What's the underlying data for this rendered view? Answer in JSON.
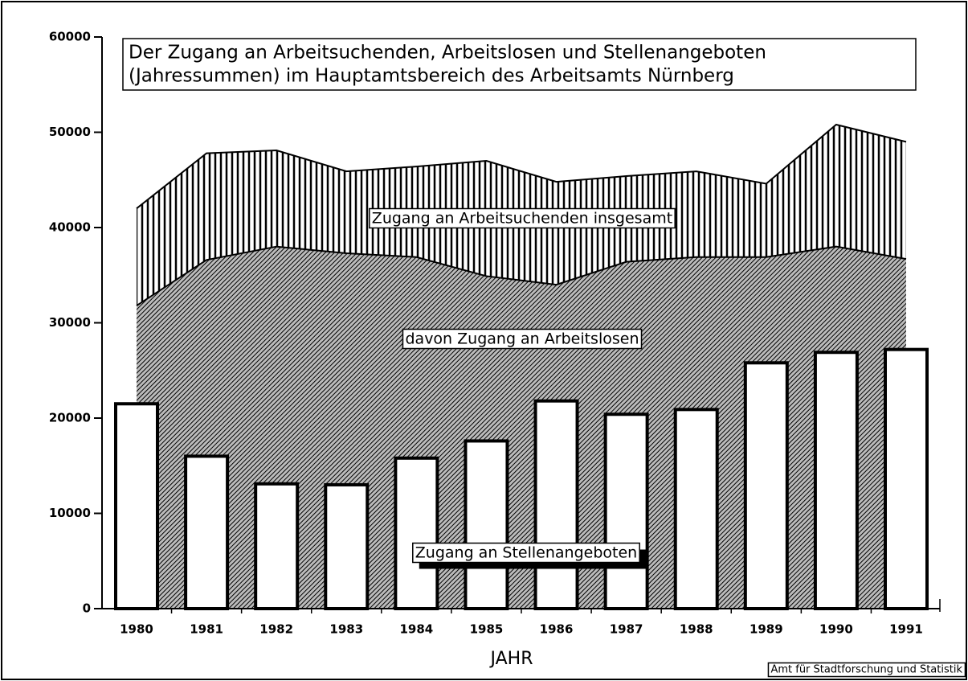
{
  "chart_data": {
    "type": "combo",
    "title": [
      "Der Zugang an Arbeitsuchenden, Arbeitslosen und Stellenangeboten",
      "(Jahressummen) im Hauptamtsbereich des Arbeitsamts Nürnberg"
    ],
    "x_label": "JAHR",
    "source": "Amt für Stadtforschung und Statistik",
    "categories": [
      "1980",
      "1981",
      "1982",
      "1983",
      "1984",
      "1985",
      "1986",
      "1987",
      "1988",
      "1989",
      "1990",
      "1991"
    ],
    "series": [
      {
        "name": "Zugang an Arbeitsuchenden insgesamt",
        "type": "area",
        "color": "#000000",
        "values": [
          42000,
          47800,
          48100,
          45900,
          46400,
          47000,
          44800,
          45400,
          45900,
          44600,
          50800,
          49000
        ]
      },
      {
        "name": "davon Zugang an Arbeitslosen",
        "type": "area",
        "color": "#000000",
        "values": [
          31800,
          36600,
          38000,
          37300,
          36900,
          34900,
          34000,
          36400,
          36900,
          36900,
          38000,
          36700
        ]
      },
      {
        "name": "Zugang an Stellenangeboten",
        "type": "bar",
        "color": "#ffffff",
        "values": [
          21500,
          16000,
          13100,
          13000,
          15800,
          17600,
          21800,
          20400,
          20900,
          25800,
          26900,
          27200
        ]
      }
    ],
    "ylim": [
      0,
      60000
    ],
    "yticks": [
      0,
      10000,
      20000,
      30000,
      40000,
      50000,
      60000
    ]
  }
}
